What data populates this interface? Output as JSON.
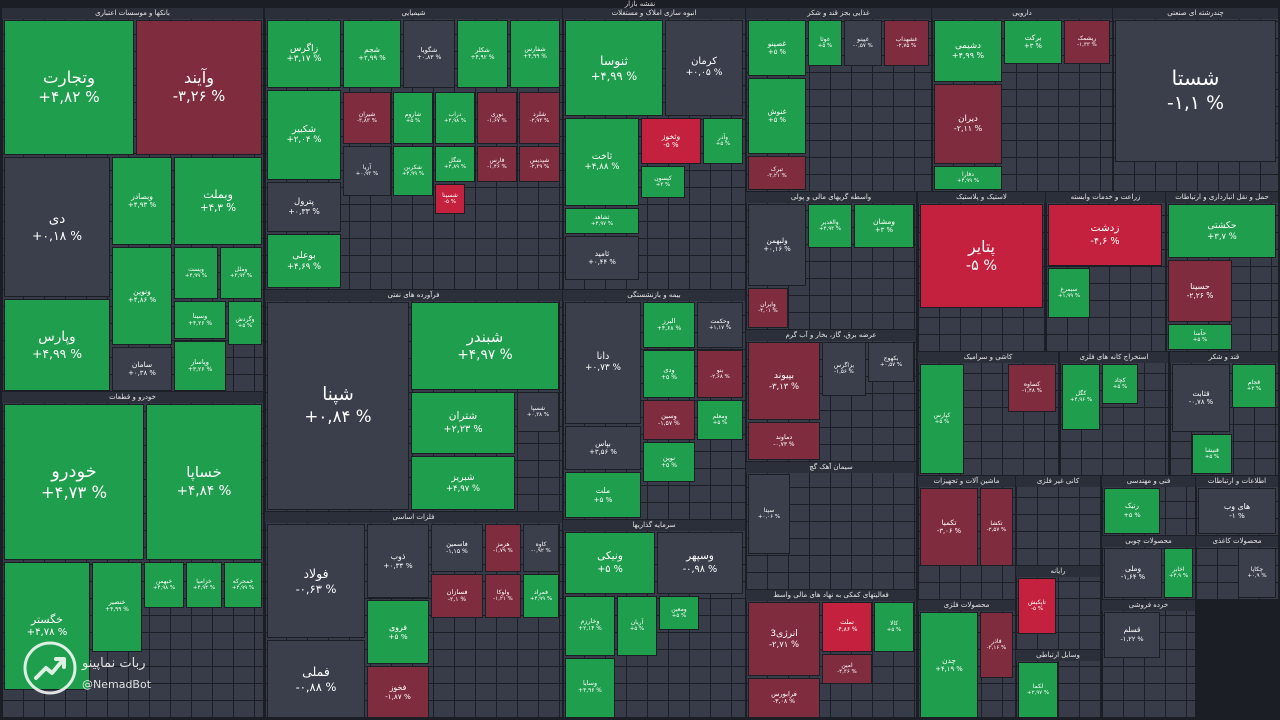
{
  "title": "نقشه بازار",
  "watermark": {
    "name": "ربات نماپینو",
    "handle": "@NemadBot"
  },
  "sectors": [
    {
      "name": "بانکها و موسسات اعتباری",
      "tiles": [
        {
          "name": "وتجارت",
          "change": "+۴,۸۲ %",
          "color": "#1f9e4d"
        },
        {
          "name": "وآیند",
          "change": "-۳,۲۶ %",
          "color": "#7f2c3e"
        },
        {
          "name": "دی",
          "change": "+۰,۱۸ %",
          "color": "#3b3f4c"
        },
        {
          "name": "وبصادر",
          "change": "+۴,۹۳ %",
          "color": "#1f9e4d"
        },
        {
          "name": "وبملت",
          "change": "+۴,۳ %",
          "color": "#1f9e4d"
        },
        {
          "name": "وپارس",
          "change": "+۴,۹۹ %",
          "color": "#1f9e4d"
        },
        {
          "name": "ونوین",
          "change": "+۴,۸۶ %",
          "color": "#1f9e4d"
        },
        {
          "name": "ویست",
          "change": "+۴,۹۹ %",
          "color": "#1f9e4d"
        },
        {
          "name": "وملل",
          "change": "+۳,۹۴ %",
          "color": "#1f9e4d"
        },
        {
          "name": "وسینا",
          "change": "+۴,۲۶ %",
          "color": "#1f9e4d"
        },
        {
          "name": "وگردش",
          "change": "+۵ %",
          "color": "#1f9e4d"
        },
        {
          "name": "وپاسار",
          "change": "+۳,۲۶ %",
          "color": "#1f9e4d"
        },
        {
          "name": "سامان",
          "change": "+۰,۳۸ %",
          "color": "#3b3f4c"
        }
      ]
    },
    {
      "name": "خودرو و قطعات",
      "tiles": [
        {
          "name": "خودرو",
          "change": "+۴,۷۳ %",
          "color": "#1f9e4d"
        },
        {
          "name": "خساپا",
          "change": "+۴,۸۴ %",
          "color": "#1f9e4d"
        },
        {
          "name": "خگستر",
          "change": "+۴,۷۸ %",
          "color": "#1f9e4d"
        },
        {
          "name": "خنصیر",
          "change": "+۴,۹۹ %",
          "color": "#1f9e4d"
        },
        {
          "name": "خبهمن",
          "change": "+۴,۹۸ %",
          "color": "#1f9e4d"
        },
        {
          "name": "خزامیا",
          "change": "+۴,۹۴ %",
          "color": "#1f9e4d"
        },
        {
          "name": "خمحرکه",
          "change": "+۴,۹۹ %",
          "color": "#1f9e4d"
        }
      ]
    },
    {
      "name": "شیمیایی",
      "tiles": [
        {
          "name": "زاگرس",
          "change": "+۳,۱۷ %",
          "color": "#1f9e4d"
        },
        {
          "name": "شجم",
          "change": "+۲,۹۹ %",
          "color": "#1f9e4d"
        },
        {
          "name": "شگویا",
          "change": "+۰,۸۳ %",
          "color": "#3b3f4c"
        },
        {
          "name": "شکلر",
          "change": "+۴,۹۲ %",
          "color": "#1f9e4d"
        },
        {
          "name": "شفارس",
          "change": "+۴,۹۹ %",
          "color": "#1f9e4d"
        },
        {
          "name": "شکبیر",
          "change": "+۲,۰۴ %",
          "color": "#1f9e4d"
        },
        {
          "name": "پترول",
          "change": "+۰,۳۳ %",
          "color": "#3b3f4c"
        },
        {
          "name": "بوعلی",
          "change": "+۴,۶۹ %",
          "color": "#1f9e4d"
        },
        {
          "name": "شیران",
          "change": "-۳,۸۳ %",
          "color": "#7f2c3e"
        },
        {
          "name": "شاروم",
          "change": "+۵ %",
          "color": "#1f9e4d"
        },
        {
          "name": "دراب",
          "change": "+۴,۹۸ %",
          "color": "#1f9e4d"
        },
        {
          "name": "نوری",
          "change": "-۱,۶۷ %",
          "color": "#7f2c3e"
        },
        {
          "name": "شلرد",
          "change": "-۲,۹۳ %",
          "color": "#7f2c3e"
        },
        {
          "name": "آریا",
          "change": "+۰,۹۳ %",
          "color": "#3b3f4c"
        },
        {
          "name": "شکربن",
          "change": "+۴,۹۹ %",
          "color": "#1f9e4d"
        },
        {
          "name": "شگل",
          "change": "+۴,۸۹ %",
          "color": "#1f9e4d"
        },
        {
          "name": "فارس",
          "change": "-۱,۴۶ %",
          "color": "#7f2c3e"
        },
        {
          "name": "شپدیس",
          "change": "-۲,۳۹ %",
          "color": "#7f2c3e"
        },
        {
          "name": "شسینا",
          "change": "-۵ %",
          "color": "#c4213f"
        }
      ]
    },
    {
      "name": "فرآورده های نفتی",
      "tiles": [
        {
          "name": "شپنا",
          "change": "+۰,۸۴ %",
          "color": "#3b3f4c"
        },
        {
          "name": "شبندر",
          "change": "+۴,۹۷ %",
          "color": "#1f9e4d"
        },
        {
          "name": "شتران",
          "change": "+۲,۲۳ %",
          "color": "#1f9e4d"
        },
        {
          "name": "شبریز",
          "change": "+۴,۹۷ %",
          "color": "#1f9e4d"
        },
        {
          "name": "شسپا",
          "change": "+۰,۳۸ %",
          "color": "#3b3f4c"
        }
      ]
    },
    {
      "name": "فلزات اساسی",
      "tiles": [
        {
          "name": "فولاد",
          "change": "-۰,۶۳ %",
          "color": "#3b3f4c"
        },
        {
          "name": "فملی",
          "change": "-۰,۸۸ %",
          "color": "#3b3f4c"
        },
        {
          "name": "ذوب",
          "change": "+۰,۳۴ %",
          "color": "#3b3f4c"
        },
        {
          "name": "فروی",
          "change": "+۵ %",
          "color": "#1f9e4d"
        },
        {
          "name": "فخوز",
          "change": "-۱,۸۷ %",
          "color": "#7f2c3e"
        },
        {
          "name": "فاسمین",
          "change": "-۱,۱۵ %",
          "color": "#3b3f4c"
        },
        {
          "name": "هرمز",
          "change": "-۱,۷۹ %",
          "color": "#7f2c3e"
        },
        {
          "name": "کاوه",
          "change": "-۰,۹۲ %",
          "color": "#3b3f4c"
        },
        {
          "name": "فسازان",
          "change": "-۲,۱ %",
          "color": "#7f2c3e"
        },
        {
          "name": "ولوکا",
          "change": "-۱,۲۱ %",
          "color": "#7f2c3e"
        },
        {
          "name": "فمراد",
          "change": "+۴,۹۹ %",
          "color": "#1f9e4d"
        }
      ]
    },
    {
      "name": "انبوه سازی املاک و مستغلات",
      "tiles": [
        {
          "name": "ثنوسا",
          "change": "+۴,۹۹ %",
          "color": "#1f9e4d"
        },
        {
          "name": "کرمان",
          "change": "+۰,۰۵ %",
          "color": "#3b3f4c"
        },
        {
          "name": "ثاخت",
          "change": "+۴,۸۸ %",
          "color": "#1f9e4d"
        },
        {
          "name": "وثخوز",
          "change": "-۵ %",
          "color": "#c4213f"
        },
        {
          "name": "وآذر",
          "change": "+۵ %",
          "color": "#1f9e4d"
        },
        {
          "name": "ثشاهد",
          "change": "+۴,۹۷ %",
          "color": "#1f9e4d"
        },
        {
          "name": "ثامید",
          "change": "+۰,۴۴ %",
          "color": "#3b3f4c"
        },
        {
          "name": "کیسون",
          "change": "+۳ %",
          "color": "#1f9e4d"
        }
      ]
    },
    {
      "name": "بیمه و بازنشستگی",
      "tiles": [
        {
          "name": "دانا",
          "change": "+۰,۷۳ %",
          "color": "#3b3f4c"
        },
        {
          "name": "البرز",
          "change": "+۴,۶۸ %",
          "color": "#1f9e4d"
        },
        {
          "name": "وحکمت",
          "change": "+۱,۱۷ %",
          "color": "#3b3f4c"
        },
        {
          "name": "ودی",
          "change": "+۵ %",
          "color": "#1f9e4d"
        },
        {
          "name": "بنو",
          "change": "-۲,۶۸ %",
          "color": "#7f2c3e"
        },
        {
          "name": "وسین",
          "change": "-۱,۵۷ %",
          "color": "#7f2c3e"
        },
        {
          "name": "ومعلم",
          "change": "+۵ %",
          "color": "#1f9e4d"
        },
        {
          "name": "بپاس",
          "change": "+۳,۵۶ %",
          "color": "#3b3f4c"
        },
        {
          "name": "ملت",
          "change": "+۵ %",
          "color": "#1f9e4d"
        },
        {
          "name": "نوین",
          "change": "+۵ %",
          "color": "#1f9e4d"
        }
      ]
    },
    {
      "name": "سرمایه گذاریها",
      "tiles": [
        {
          "name": "ونیکی",
          "change": "+۵ %",
          "color": "#1f9e4d"
        },
        {
          "name": "وسپهر",
          "change": "-۰,۹۸ %",
          "color": "#3b3f4c"
        },
        {
          "name": "وخارزم",
          "change": "+۲,۱۴ %",
          "color": "#1f9e4d"
        },
        {
          "name": "آریان",
          "change": "+۵ %",
          "color": "#1f9e4d"
        },
        {
          "name": "وسایا",
          "change": "+۴,۹۶ %",
          "color": "#1f9e4d"
        },
        {
          "name": "ومعین",
          "change": "+۵ %",
          "color": "#1f9e4d"
        }
      ]
    },
    {
      "name": "غذایی بجز قند و شکر",
      "tiles": [
        {
          "name": "غصینو",
          "change": "+۵ %",
          "color": "#1f9e4d"
        },
        {
          "name": "غنوش",
          "change": "+۵ %",
          "color": "#1f9e4d"
        },
        {
          "name": "غوثا",
          "change": "+۵ %",
          "color": "#1f9e4d"
        },
        {
          "name": "غپینو",
          "change": "-۰,۵۷ %",
          "color": "#3b3f4c"
        },
        {
          "name": "غشهداب",
          "change": "-۲,۷۵ %",
          "color": "#7f2c3e"
        },
        {
          "name": "تبرک",
          "change": "-۳,۲۱ %",
          "color": "#7f2c3e"
        }
      ]
    },
    {
      "name": "واسطه گریهای مالی و پولی",
      "tiles": [
        {
          "name": "ولبهمن",
          "change": "+۰,۱۶ %",
          "color": "#3b3f4c"
        },
        {
          "name": "والغدیر",
          "change": "+۴,۹۳ %",
          "color": "#1f9e4d"
        },
        {
          "name": "ومشان",
          "change": "+۳ %",
          "color": "#1f9e4d"
        },
        {
          "name": "وایران",
          "change": "-۴,۰۱ %",
          "color": "#7f2c3e"
        }
      ]
    },
    {
      "name": "عرضه برق، گاز، بخار و آب گرم",
      "tiles": [
        {
          "name": "بپیوند",
          "change": "-۳,۱۳ %",
          "color": "#7f2c3e"
        },
        {
          "name": "بزاگرس",
          "change": "-۱,۵۶ %",
          "color": "#3b3f4c"
        },
        {
          "name": "بکهوج",
          "change": "+۰,۵۷ %",
          "color": "#3b3f4c"
        },
        {
          "name": "دماوند",
          "change": "-۰,۷۳ %",
          "color": "#7f2c3e"
        }
      ]
    },
    {
      "name": "سیمان آهک گچ",
      "tiles": [
        {
          "name": "سپتا",
          "change": "+۰,۰۶ %",
          "color": "#3b3f4c"
        }
      ]
    },
    {
      "name": "فعالیتهای کمکی به نهاد های مالی واسط",
      "tiles": [
        {
          "name": "انرژی3",
          "change": "-۲,۷۱ %",
          "color": "#7f2c3e"
        },
        {
          "name": "تملت",
          "change": "-۴,۸۶ %",
          "color": "#c4213f"
        },
        {
          "name": "کالا",
          "change": "+۵ %",
          "color": "#1f9e4d"
        },
        {
          "name": "فرابورس",
          "change": "-۳,۰۸ %",
          "color": "#7f2c3e"
        },
        {
          "name": "امین",
          "change": "-۴,۳۶ %",
          "color": "#7f2c3e"
        }
      ]
    },
    {
      "name": "دارویی",
      "tiles": [
        {
          "name": "دشیمی",
          "change": "+۴,۹۹ %",
          "color": "#1f9e4d"
        },
        {
          "name": "برکت",
          "change": "+۳ %",
          "color": "#1f9e4d"
        },
        {
          "name": "ریشمک",
          "change": "-۱,۳۳ %",
          "color": "#7f2c3e"
        },
        {
          "name": "دیران",
          "change": "-۲,۱۱ %",
          "color": "#7f2c3e"
        },
        {
          "name": "دفارا",
          "change": "+۴,۹۹ %",
          "color": "#1f9e4d"
        }
      ]
    },
    {
      "name": "چندرشته ای صنعتی",
      "tiles": [
        {
          "name": "شستا",
          "change": "-۱,۱ %",
          "color": "#3b3f4c"
        }
      ]
    },
    {
      "name": "لاستیک و پلاستیک",
      "tiles": [
        {
          "name": "پتایر",
          "change": "-۵ %",
          "color": "#c4213f"
        }
      ]
    },
    {
      "name": "زراعت و خدمات وابسته",
      "tiles": [
        {
          "name": "زدشت",
          "change": "-۴,۶ %",
          "color": "#c4213f"
        },
        {
          "name": "سیمرغ",
          "change": "+۱,۹۹ %",
          "color": "#1f9e4d"
        }
      ]
    },
    {
      "name": "حمل و نقل انبارداری و ارتباطات",
      "tiles": [
        {
          "name": "حکشتی",
          "change": "+۳,۷ %",
          "color": "#1f9e4d"
        },
        {
          "name": "حسینا",
          "change": "-۲,۲۶ %",
          "color": "#7f2c3e"
        },
        {
          "name": "حآسا",
          "change": "+۵ %",
          "color": "#1f9e4d"
        }
      ]
    },
    {
      "name": "کاشی و سرامیک",
      "tiles": [
        {
          "name": "کپارس",
          "change": "+۵ %",
          "color": "#1f9e4d"
        },
        {
          "name": "کساوه",
          "change": "-۱,۴۸ %",
          "color": "#7f2c3e"
        }
      ]
    },
    {
      "name": "استخراج کانه های فلزی",
      "tiles": [
        {
          "name": "کگل",
          "change": "+۴,۹۶ %",
          "color": "#1f9e4d"
        },
        {
          "name": "کچاد",
          "change": "+۵ %",
          "color": "#1f9e4d"
        }
      ]
    },
    {
      "name": "قند و شکر",
      "tiles": [
        {
          "name": "قثابت",
          "change": "-۰,۷۸ %",
          "color": "#3b3f4c"
        },
        {
          "name": "قجام",
          "change": "+۳ %",
          "color": "#1f9e4d"
        },
        {
          "name": "قنیشا",
          "change": "+۵ %",
          "color": "#1f9e4d"
        }
      ]
    },
    {
      "name": "ماشین آلات و تجهیزات",
      "tiles": [
        {
          "name": "تکمبا",
          "change": "-۳,۰۶ %",
          "color": "#7f2c3e"
        },
        {
          "name": "تکشا",
          "change": "-۲,۵۷ %",
          "color": "#7f2c3e"
        }
      ]
    },
    {
      "name": "کانی غیر فلزی",
      "tiles": []
    },
    {
      "name": "فنی و مهندسی",
      "tiles": [
        {
          "name": "رتیک",
          "change": "+۵ %",
          "color": "#1f9e4d"
        }
      ]
    },
    {
      "name": "اطلاعات و ارتباطات",
      "tiles": [
        {
          "name": "های وب",
          "change": "-۱ %",
          "color": "#3b3f4c"
        }
      ]
    },
    {
      "name": "محصولات چوبی",
      "tiles": [
        {
          "name": "وملی",
          "change": "-۱,۶۴ %",
          "color": "#3b3f4c"
        },
        {
          "name": "اخابر",
          "change": "+۴,۹ %",
          "color": "#1f9e4d"
        }
      ]
    },
    {
      "name": "محصولات کاغذی",
      "tiles": [
        {
          "name": "چکاپا",
          "change": "+۰,۹ %",
          "color": "#3b3f4c"
        }
      ]
    },
    {
      "name": "محصولات فلزی",
      "tiles": [
        {
          "name": "چدن",
          "change": "+۴,۱۹ %",
          "color": "#1f9e4d"
        },
        {
          "name": "فاذر",
          "change": "-۳,۱۶ %",
          "color": "#7f2c3e"
        }
      ]
    },
    {
      "name": "رایانه",
      "tiles": [
        {
          "name": "تاپکیش",
          "change": "-۵ %",
          "color": "#c4213f"
        }
      ]
    },
    {
      "name": "خرده فروشی",
      "tiles": [
        {
          "name": "قسلم",
          "change": "-۱,۲۲ %",
          "color": "#3b3f4c"
        }
      ]
    },
    {
      "name": "وسایل ارتباطی",
      "tiles": [
        {
          "name": "لکما",
          "change": "+۲,۹۷ %",
          "color": "#1f9e4d"
        }
      ]
    }
  ]
}
